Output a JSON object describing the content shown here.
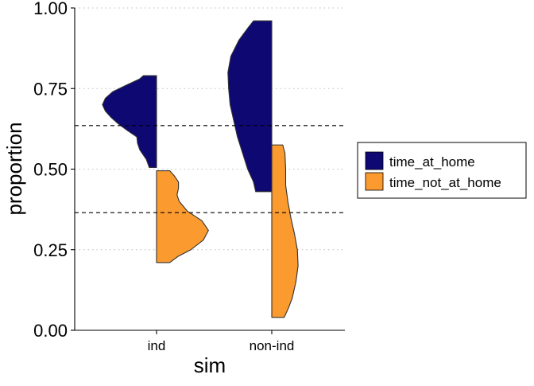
{
  "chart_data": {
    "type": "violin",
    "xlabel": "sim",
    "ylabel": "proportion",
    "categories": [
      "ind",
      "non-ind"
    ],
    "ylim": [
      0.0,
      1.0
    ],
    "yticks": [
      "0.00",
      "0.25",
      "0.50",
      "0.75",
      "1.00"
    ],
    "grid": "horizontal-dotted",
    "legend_position": "right",
    "series": [
      {
        "name": "time_at_home",
        "color": "#0e0873",
        "side": "left",
        "violins": [
          {
            "category": "ind",
            "min": 0.505,
            "max": 0.79,
            "profile": [
              [
                0.505,
                0.1
              ],
              [
                0.53,
                0.14
              ],
              [
                0.56,
                0.23
              ],
              [
                0.58,
                0.26
              ],
              [
                0.6,
                0.27
              ],
              [
                0.62,
                0.4
              ],
              [
                0.64,
                0.52
              ],
              [
                0.66,
                0.62
              ],
              [
                0.68,
                0.7
              ],
              [
                0.7,
                0.74
              ],
              [
                0.72,
                0.7
              ],
              [
                0.74,
                0.6
              ],
              [
                0.76,
                0.42
              ],
              [
                0.78,
                0.23
              ],
              [
                0.79,
                0.18
              ]
            ]
          },
          {
            "category": "non-ind",
            "min": 0.43,
            "max": 0.96,
            "profile": [
              [
                0.43,
                0.22
              ],
              [
                0.46,
                0.25
              ],
              [
                0.5,
                0.33
              ],
              [
                0.55,
                0.4
              ],
              [
                0.6,
                0.47
              ],
              [
                0.65,
                0.52
              ],
              [
                0.7,
                0.57
              ],
              [
                0.75,
                0.59
              ],
              [
                0.8,
                0.6
              ],
              [
                0.85,
                0.56
              ],
              [
                0.9,
                0.45
              ],
              [
                0.94,
                0.32
              ],
              [
                0.96,
                0.25
              ]
            ]
          }
        ]
      },
      {
        "name": "time_not_at_home",
        "color": "#fb9a2f",
        "side": "right",
        "violins": [
          {
            "category": "ind",
            "min": 0.21,
            "max": 0.495,
            "profile": [
              [
                0.21,
                0.18
              ],
              [
                0.23,
                0.3
              ],
              [
                0.25,
                0.47
              ],
              [
                0.28,
                0.64
              ],
              [
                0.31,
                0.71
              ],
              [
                0.34,
                0.62
              ],
              [
                0.37,
                0.42
              ],
              [
                0.4,
                0.31
              ],
              [
                0.42,
                0.28
              ],
              [
                0.44,
                0.3
              ],
              [
                0.46,
                0.3
              ],
              [
                0.48,
                0.24
              ],
              [
                0.495,
                0.18
              ]
            ]
          },
          {
            "category": "non-ind",
            "min": 0.04,
            "max": 0.575,
            "profile": [
              [
                0.04,
                0.17
              ],
              [
                0.07,
                0.23
              ],
              [
                0.1,
                0.28
              ],
              [
                0.15,
                0.33
              ],
              [
                0.2,
                0.36
              ],
              [
                0.25,
                0.35
              ],
              [
                0.3,
                0.31
              ],
              [
                0.35,
                0.26
              ],
              [
                0.4,
                0.22
              ],
              [
                0.45,
                0.19
              ],
              [
                0.5,
                0.19
              ],
              [
                0.55,
                0.18
              ],
              [
                0.575,
                0.15
              ]
            ]
          }
        ]
      }
    ],
    "reference_lines": [
      0.635,
      0.365
    ]
  }
}
